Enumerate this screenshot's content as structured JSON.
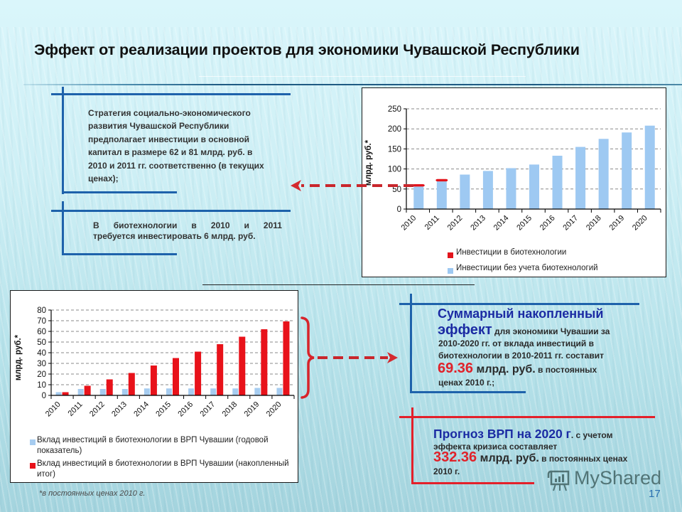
{
  "slide": {
    "title": "Эффект от реализации проектов для экономики Чувашской Республики",
    "page_number": "17",
    "footnote": "*в постоянных ценах 2010 г.",
    "watermark": "MyShared"
  },
  "left_text": {
    "block1": {
      "lines": [
        "Стратегия социально-экономического",
        "развития Чувашской Республики",
        "предполагает инвестиции в основной",
        "капитал в размере 62 и 81 млрд. руб. в",
        "2010 и 2011 гг. соответственно (в текущих",
        "ценах);"
      ]
    },
    "block2": {
      "lines": [
        "В биотехнологии в 2010 и 2011 гг",
        "требуется инвестировать 6 млрд. руб."
      ]
    }
  },
  "summary_box": {
    "heading": "Суммарный накопленный",
    "heading2": "эффект",
    "line2_rest": " для экономики Чувашии за",
    "line3": "2010-2020 гг. от вклада инвестиций в",
    "line4": "биотехнологии в 2010-2011 гг. составит",
    "value": "69.36",
    "unit": " млрд. руб.",
    "value_rest": " в постоянных",
    "line6": "ценах 2010 г.;"
  },
  "forecast_box": {
    "heading": "Прогноз ВРП на 2020 г",
    "heading_rest": ". с учетом",
    "line2": "эффекта кризиса составляет",
    "value": "332.36",
    "unit": " млрд. руб.",
    "value_rest": " в постоянных ценах",
    "line4": "2010 г."
  },
  "colors": {
    "frame_blue": "#1e62ab",
    "frame_red": "#e3202a",
    "arrow_red": "#c9262c",
    "bar_blue": "#9ec9f2",
    "bar_red": "#e2141c",
    "heading_blue": "#1b2ba3"
  },
  "chart_data": [
    {
      "type": "bar",
      "stacked": true,
      "title": "",
      "xlabel": "",
      "ylabel": "млрд. руб.*",
      "ylim": [
        0,
        250
      ],
      "ytick_step": 50,
      "grid": true,
      "legend_position": "bottom",
      "categories": [
        "2010",
        "2011",
        "2012",
        "2013",
        "2014",
        "2015",
        "2016",
        "2017",
        "2018",
        "2019",
        "2020"
      ],
      "series": [
        {
          "name": "Инвестиции в биотехнологии",
          "color": "#e2141c",
          "values": [
            6,
            6,
            0,
            0,
            0,
            0,
            0,
            0,
            0,
            0,
            0
          ]
        },
        {
          "name": "Инвестиции без учета биотехнологий",
          "color": "#9ec9f2",
          "values": [
            56,
            69,
            86,
            95,
            102,
            111,
            133,
            155,
            175,
            191,
            208
          ]
        }
      ]
    },
    {
      "type": "bar",
      "stacked": false,
      "title": "",
      "xlabel": "",
      "ylabel": "млрд. руб.*",
      "ylim": [
        0,
        80
      ],
      "ytick_step": 10,
      "grid": true,
      "legend_position": "bottom",
      "categories": [
        "2010",
        "2011",
        "2012",
        "2013",
        "2014",
        "2015",
        "2016",
        "2017",
        "2018",
        "2019",
        "2020"
      ],
      "series": [
        {
          "name": "Вклад инвестиций в биотехнологии в ВРП Чувашии (годовой показатель)",
          "color": "#a6ccf0",
          "values": [
            3,
            6,
            6,
            6,
            6.5,
            6.5,
            6.5,
            6.5,
            6.5,
            7,
            7
          ]
        },
        {
          "name": "Вклад инвестиций в биотехнологии в ВРП Чувашии (накопленный итог)",
          "color": "#e8121a",
          "values": [
            3,
            9,
            15,
            21,
            28,
            35,
            41,
            48,
            55,
            62,
            69.36
          ]
        }
      ]
    }
  ]
}
